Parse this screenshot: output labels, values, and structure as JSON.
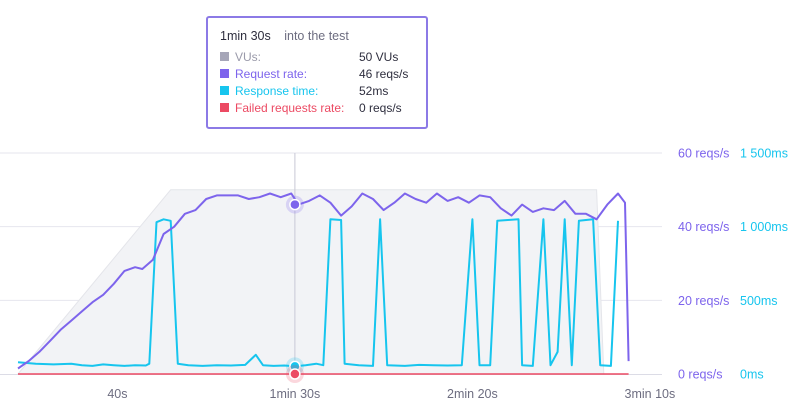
{
  "tooltip": {
    "time": "1min 30s",
    "subtitle": "into the test",
    "rows": [
      {
        "label": "VUs:",
        "value": "50 VUs",
        "color": "#a6a6b8",
        "text_color": "#9a9aaa"
      },
      {
        "label": "Request rate:",
        "value": "46 reqs/s",
        "color": "#7d64ec",
        "text_color": "#7d64ec"
      },
      {
        "label": "Response time:",
        "value": "52ms",
        "color": "#17c5ee",
        "text_color": "#17c5ee"
      },
      {
        "label": "Failed requests rate:",
        "value": "0 reqs/s",
        "color": "#ec4a63",
        "text_color": "#ec4a63"
      }
    ]
  },
  "chart_data": {
    "type": "line",
    "title": "",
    "x_ticks": [
      {
        "label": "40s",
        "t": 40
      },
      {
        "label": "1min 30s",
        "t": 90
      },
      {
        "label": "2min 20s",
        "t": 140
      },
      {
        "label": "3min 10s",
        "t": 190
      }
    ],
    "x_range": [
      12,
      192
    ],
    "cursor_t": 90,
    "y_left": {
      "unit": "reqs/s",
      "range": [
        0,
        60
      ],
      "tick_labels": [
        "60 reqs/s",
        "40 reqs/s",
        "20 reqs/s",
        "0 reqs/s"
      ],
      "tick_values": [
        60,
        40,
        20,
        0
      ]
    },
    "y_right": {
      "unit": "ms",
      "range": [
        0,
        1500
      ],
      "tick_labels": [
        "1 500ms",
        "1 000ms",
        "500ms",
        "0ms"
      ],
      "tick_values": [
        1500,
        1000,
        500,
        0
      ]
    },
    "colors": {
      "vus_fill": "#f2f3f6",
      "request_rate": "#7d64ec",
      "response_time": "#17c5ee",
      "failed": "#ec4a63",
      "grid": "#e6e6ee",
      "axis_text": "#6d6d80",
      "cursor": "#c8c8d6"
    },
    "series": [
      {
        "name": "VUs",
        "axis": "left",
        "points": [
          [
            12,
            0
          ],
          [
            55,
            50
          ],
          [
            175,
            50
          ],
          [
            177,
            0
          ]
        ]
      },
      {
        "name": "Request rate",
        "axis": "left",
        "points": [
          [
            12,
            1.5
          ],
          [
            15,
            3.5
          ],
          [
            18,
            6
          ],
          [
            21,
            9
          ],
          [
            24,
            12
          ],
          [
            27,
            14.5
          ],
          [
            30,
            17
          ],
          [
            33,
            19.5
          ],
          [
            36,
            21.5
          ],
          [
            39,
            24.5
          ],
          [
            42,
            28
          ],
          [
            45,
            29
          ],
          [
            47,
            28.5
          ],
          [
            50,
            31
          ],
          [
            53,
            38
          ],
          [
            56,
            40
          ],
          [
            59,
            43.5
          ],
          [
            62,
            44.5
          ],
          [
            65,
            47.5
          ],
          [
            68,
            48.5
          ],
          [
            71,
            48.5
          ],
          [
            74,
            48.5
          ],
          [
            77,
            47.5
          ],
          [
            80,
            48
          ],
          [
            83,
            49
          ],
          [
            86,
            48
          ],
          [
            89,
            49
          ],
          [
            91,
            46
          ],
          [
            94,
            47
          ],
          [
            97,
            48.5
          ],
          [
            100,
            46.5
          ],
          [
            103,
            43
          ],
          [
            106,
            45.5
          ],
          [
            109,
            49
          ],
          [
            112,
            47.5
          ],
          [
            115,
            44.5
          ],
          [
            118,
            46.5
          ],
          [
            121,
            49
          ],
          [
            124,
            47.5
          ],
          [
            127,
            46.5
          ],
          [
            130,
            49
          ],
          [
            133,
            47
          ],
          [
            136,
            48
          ],
          [
            139,
            46.5
          ],
          [
            142,
            48.5
          ],
          [
            145,
            48
          ],
          [
            148,
            45
          ],
          [
            151,
            43
          ],
          [
            154,
            46
          ],
          [
            157,
            44
          ],
          [
            160,
            45
          ],
          [
            163,
            44.5
          ],
          [
            166,
            47
          ],
          [
            169,
            43.5
          ],
          [
            172,
            43.5
          ],
          [
            175,
            42
          ],
          [
            178,
            46
          ],
          [
            181,
            49
          ],
          [
            183,
            46.5
          ],
          [
            184,
            3.5
          ]
        ]
      },
      {
        "name": "Response time",
        "axis": "right",
        "points": [
          [
            12,
            80
          ],
          [
            17,
            70
          ],
          [
            22,
            65
          ],
          [
            27,
            70
          ],
          [
            30,
            60
          ],
          [
            33,
            55
          ],
          [
            36,
            65
          ],
          [
            39,
            60
          ],
          [
            42,
            55
          ],
          [
            45,
            60
          ],
          [
            48,
            58
          ],
          [
            49,
            70
          ],
          [
            51,
            1030
          ],
          [
            53,
            1050
          ],
          [
            55,
            1040
          ],
          [
            57,
            70
          ],
          [
            60,
            60
          ],
          [
            64,
            55
          ],
          [
            68,
            60
          ],
          [
            72,
            58
          ],
          [
            76,
            62
          ],
          [
            79,
            130
          ],
          [
            81,
            60
          ],
          [
            84,
            55
          ],
          [
            87,
            58
          ],
          [
            90,
            52
          ],
          [
            93,
            60
          ],
          [
            96,
            70
          ],
          [
            98,
            60
          ],
          [
            100,
            1050
          ],
          [
            103,
            1045
          ],
          [
            104,
            70
          ],
          [
            108,
            60
          ],
          [
            112,
            55
          ],
          [
            114,
            1050
          ],
          [
            116,
            60
          ],
          [
            121,
            55
          ],
          [
            125,
            62
          ],
          [
            129,
            60
          ],
          [
            133,
            58
          ],
          [
            137,
            60
          ],
          [
            140,
            1050
          ],
          [
            142,
            60
          ],
          [
            145,
            60
          ],
          [
            147,
            1040
          ],
          [
            150,
            1045
          ],
          [
            153,
            1050
          ],
          [
            154,
            60
          ],
          [
            157,
            55
          ],
          [
            160,
            1050
          ],
          [
            162,
            60
          ],
          [
            164,
            150
          ],
          [
            166,
            1050
          ],
          [
            168,
            60
          ],
          [
            170,
            1040
          ],
          [
            174,
            1050
          ],
          [
            176,
            60
          ],
          [
            179,
            55
          ],
          [
            181,
            1040
          ]
        ]
      },
      {
        "name": "Failed requests rate",
        "axis": "left",
        "points": [
          [
            12,
            0
          ],
          [
            184,
            0
          ]
        ]
      }
    ]
  }
}
